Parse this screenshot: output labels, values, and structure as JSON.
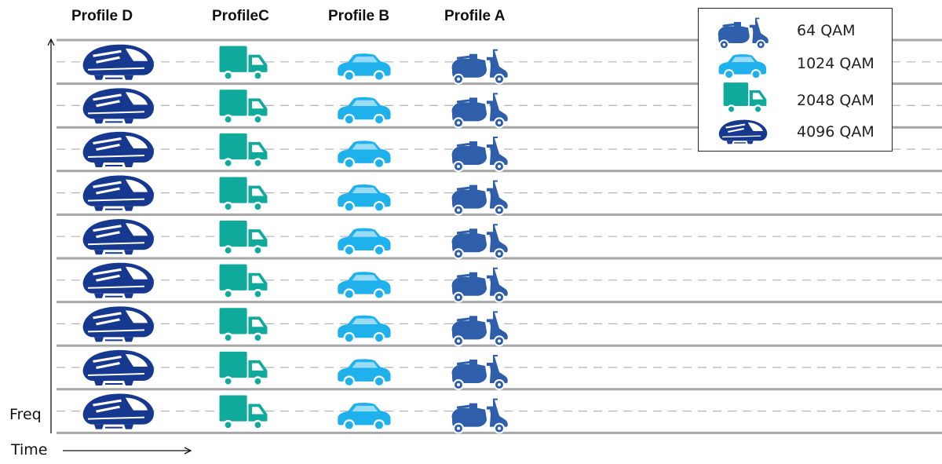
{
  "headers": {
    "profile_d": "Profile D",
    "profile_c": "ProfileC",
    "profile_b": "Profile B",
    "profile_a": "Profile A"
  },
  "axes": {
    "freq": "Freq",
    "time": "Time"
  },
  "legend": {
    "items": [
      {
        "label": "64 QAM",
        "icon": "scooter-icon",
        "color": "#2f5faa"
      },
      {
        "label": "1024 QAM",
        "icon": "car-icon",
        "color": "#1fb1ec"
      },
      {
        "label": "2048 QAM",
        "icon": "truck-icon",
        "color": "#10aa9c"
      },
      {
        "label": "4096 QAM",
        "icon": "train-icon",
        "color": "#17388f"
      }
    ]
  },
  "lanes": {
    "count": 9,
    "columns": [
      {
        "profile": "Profile D",
        "icon": "train-icon",
        "color": "#17388f"
      },
      {
        "profile": "ProfileC",
        "icon": "truck-icon",
        "color": "#10aa9c"
      },
      {
        "profile": "Profile B",
        "icon": "car-icon",
        "color": "#1fb1ec"
      },
      {
        "profile": "Profile A",
        "icon": "scooter-icon",
        "color": "#2f5faa"
      }
    ]
  },
  "colors": {
    "lane_line": "#a6a6a6",
    "dash_line": "#b3b3b3"
  }
}
